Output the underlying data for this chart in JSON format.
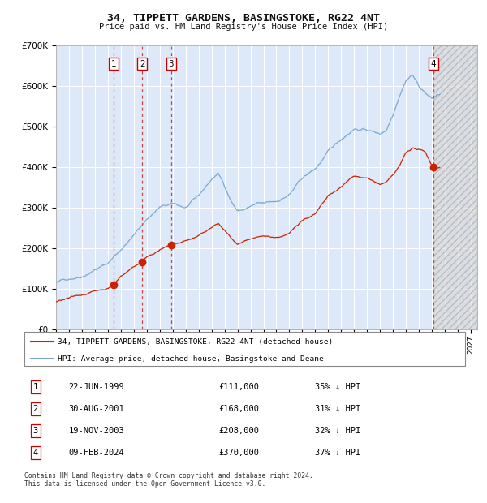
{
  "title": "34, TIPPETT GARDENS, BASINGSTOKE, RG22 4NT",
  "subtitle": "Price paid vs. HM Land Registry's House Price Index (HPI)",
  "ylim": [
    0,
    700000
  ],
  "xlim_start": 1995.0,
  "xlim_end": 2027.5,
  "background_color": "#ffffff",
  "plot_bg_color": "#dde8f8",
  "grid_color": "#ffffff",
  "hpi_color": "#7aaad0",
  "price_color": "#cc2200",
  "dashed_line_color": "#cc4444",
  "transactions": [
    {
      "date_decimal": 1999.47,
      "price": 111000,
      "label": "1"
    },
    {
      "date_decimal": 2001.66,
      "price": 168000,
      "label": "2"
    },
    {
      "date_decimal": 2003.89,
      "price": 208000,
      "label": "3"
    },
    {
      "date_decimal": 2024.11,
      "price": 370000,
      "label": "4"
    }
  ],
  "transaction_table": [
    {
      "num": "1",
      "date": "22-JUN-1999",
      "price": "£111,000",
      "pct": "35% ↓ HPI"
    },
    {
      "num": "2",
      "date": "30-AUG-2001",
      "price": "£168,000",
      "pct": "31% ↓ HPI"
    },
    {
      "num": "3",
      "date": "19-NOV-2003",
      "price": "£208,000",
      "pct": "32% ↓ HPI"
    },
    {
      "num": "4",
      "date": "09-FEB-2024",
      "price": "£370,000",
      "pct": "37% ↓ HPI"
    }
  ],
  "legend_entries": [
    "34, TIPPETT GARDENS, BASINGSTOKE, RG22 4NT (detached house)",
    "HPI: Average price, detached house, Basingstoke and Deane"
  ],
  "footer": "Contains HM Land Registry data © Crown copyright and database right 2024.\nThis data is licensed under the Open Government Licence v3.0.",
  "yticks": [
    0,
    100000,
    200000,
    300000,
    400000,
    500000,
    600000,
    700000
  ],
  "ytick_labels": [
    "£0",
    "£100K",
    "£200K",
    "£300K",
    "£400K",
    "£500K",
    "£600K",
    "£700K"
  ],
  "xticks": [
    1995,
    1996,
    1997,
    1998,
    1999,
    2000,
    2001,
    2002,
    2003,
    2004,
    2005,
    2006,
    2007,
    2008,
    2009,
    2010,
    2011,
    2012,
    2013,
    2014,
    2015,
    2016,
    2017,
    2018,
    2019,
    2020,
    2021,
    2022,
    2023,
    2024,
    2025,
    2026,
    2027
  ]
}
